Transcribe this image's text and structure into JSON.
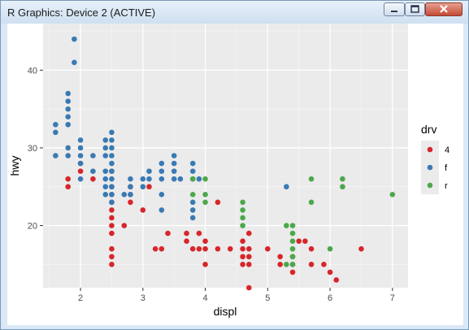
{
  "window": {
    "title": "R Graphics: Device 2 (ACTIVE)"
  },
  "controls": {
    "minimize_icon": "minimize-icon",
    "maximize_icon": "maximize-icon",
    "close_icon": "close-icon"
  },
  "chart_data": {
    "type": "scatter",
    "xlabel": "displ",
    "ylabel": "hwy",
    "xlim": [
      1.4,
      7.25
    ],
    "ylim": [
      12.0,
      46.0
    ],
    "x_ticks": [
      2,
      3,
      4,
      5,
      6,
      7
    ],
    "y_ticks": [
      20,
      30,
      40
    ],
    "x_tick_labels": [
      "2",
      "3",
      "4",
      "5",
      "6",
      "7"
    ],
    "y_tick_labels": [
      "20",
      "30",
      "40"
    ],
    "grid": true,
    "legend": {
      "title": "drv",
      "position": "right"
    },
    "series": [
      {
        "name": "4",
        "color": "#d7262b",
        "points": [
          [
            1.8,
            26
          ],
          [
            1.8,
            25
          ],
          [
            2.0,
            28
          ],
          [
            2.0,
            27
          ],
          [
            2.2,
            26
          ],
          [
            2.5,
            27
          ],
          [
            2.5,
            25
          ],
          [
            2.5,
            24
          ],
          [
            2.5,
            23
          ],
          [
            2.5,
            22
          ],
          [
            2.5,
            21
          ],
          [
            2.5,
            20
          ],
          [
            2.5,
            19
          ],
          [
            2.5,
            17
          ],
          [
            2.5,
            16
          ],
          [
            2.5,
            15
          ],
          [
            2.7,
            20
          ],
          [
            2.8,
            25
          ],
          [
            2.8,
            24
          ],
          [
            2.8,
            23
          ],
          [
            3.0,
            22
          ],
          [
            3.1,
            25
          ],
          [
            3.2,
            17
          ],
          [
            3.3,
            17
          ],
          [
            3.4,
            19
          ],
          [
            3.7,
            19
          ],
          [
            3.7,
            18
          ],
          [
            3.8,
            17
          ],
          [
            3.9,
            19
          ],
          [
            3.9,
            17
          ],
          [
            4.0,
            18
          ],
          [
            4.0,
            17
          ],
          [
            4.0,
            15
          ],
          [
            4.2,
            23
          ],
          [
            4.2,
            17
          ],
          [
            4.4,
            17
          ],
          [
            4.6,
            18
          ],
          [
            4.6,
            17
          ],
          [
            4.6,
            16
          ],
          [
            4.6,
            15
          ],
          [
            4.7,
            19
          ],
          [
            4.7,
            17
          ],
          [
            4.7,
            16
          ],
          [
            4.7,
            15
          ],
          [
            4.7,
            12
          ],
          [
            5.0,
            17
          ],
          [
            5.2,
            16
          ],
          [
            5.2,
            15
          ],
          [
            5.4,
            16
          ],
          [
            5.4,
            15
          ],
          [
            5.4,
            14
          ],
          [
            5.5,
            18
          ],
          [
            5.6,
            18
          ],
          [
            5.7,
            17
          ],
          [
            5.7,
            15
          ],
          [
            5.9,
            15
          ],
          [
            6.0,
            14
          ],
          [
            6.1,
            13
          ],
          [
            6.5,
            17
          ]
        ]
      },
      {
        "name": "f",
        "color": "#3a7ab3",
        "points": [
          [
            1.6,
            33
          ],
          [
            1.6,
            32
          ],
          [
            1.6,
            29
          ],
          [
            1.8,
            37
          ],
          [
            1.8,
            36
          ],
          [
            1.8,
            35
          ],
          [
            1.8,
            34
          ],
          [
            1.8,
            33
          ],
          [
            1.8,
            30
          ],
          [
            1.8,
            29
          ],
          [
            1.9,
            44
          ],
          [
            1.9,
            41
          ],
          [
            2.0,
            31
          ],
          [
            2.0,
            30
          ],
          [
            2.0,
            29
          ],
          [
            2.0,
            28
          ],
          [
            2.0,
            26
          ],
          [
            2.2,
            29
          ],
          [
            2.2,
            27
          ],
          [
            2.4,
            31
          ],
          [
            2.4,
            30
          ],
          [
            2.4,
            29
          ],
          [
            2.4,
            27
          ],
          [
            2.4,
            26
          ],
          [
            2.4,
            25
          ],
          [
            2.4,
            24
          ],
          [
            2.5,
            32
          ],
          [
            2.5,
            31
          ],
          [
            2.5,
            30
          ],
          [
            2.5,
            29
          ],
          [
            2.5,
            28
          ],
          [
            2.5,
            27
          ],
          [
            2.5,
            26
          ],
          [
            2.5,
            25
          ],
          [
            2.5,
            24
          ],
          [
            2.5,
            23
          ],
          [
            2.7,
            24
          ],
          [
            2.8,
            26
          ],
          [
            2.8,
            25
          ],
          [
            2.8,
            24
          ],
          [
            3.0,
            26
          ],
          [
            3.0,
            25
          ],
          [
            3.1,
            27
          ],
          [
            3.1,
            26
          ],
          [
            3.3,
            28
          ],
          [
            3.3,
            27
          ],
          [
            3.3,
            26
          ],
          [
            3.3,
            24
          ],
          [
            3.3,
            22
          ],
          [
            3.5,
            29
          ],
          [
            3.5,
            28
          ],
          [
            3.5,
            27
          ],
          [
            3.5,
            26
          ],
          [
            3.6,
            26
          ],
          [
            3.8,
            28
          ],
          [
            3.8,
            27
          ],
          [
            3.8,
            26
          ],
          [
            3.8,
            23
          ],
          [
            3.8,
            22
          ],
          [
            3.8,
            21
          ],
          [
            3.9,
            26
          ],
          [
            5.3,
            25
          ]
        ]
      },
      {
        "name": "r",
        "color": "#4ba84a",
        "points": [
          [
            3.8,
            26
          ],
          [
            3.8,
            24
          ],
          [
            4.0,
            26
          ],
          [
            4.0,
            24
          ],
          [
            4.0,
            23
          ],
          [
            4.6,
            23
          ],
          [
            4.6,
            22
          ],
          [
            4.6,
            21
          ],
          [
            4.6,
            20
          ],
          [
            5.3,
            20
          ],
          [
            5.4,
            20
          ],
          [
            5.4,
            19
          ],
          [
            5.4,
            18
          ],
          [
            5.4,
            17
          ],
          [
            5.4,
            16
          ],
          [
            5.4,
            15
          ],
          [
            5.3,
            15
          ],
          [
            5.7,
            26
          ],
          [
            5.7,
            23
          ],
          [
            6.0,
            17
          ],
          [
            6.2,
            26
          ],
          [
            6.2,
            25
          ],
          [
            7.0,
            24
          ]
        ]
      }
    ]
  }
}
